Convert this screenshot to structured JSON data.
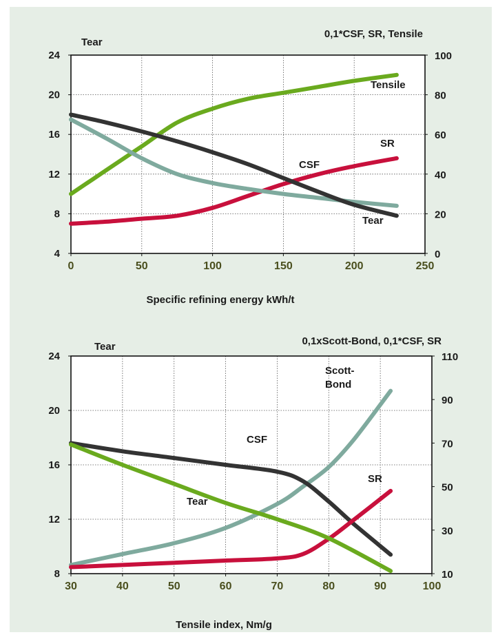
{
  "chart_data": [
    {
      "type": "line",
      "title": "",
      "xlabel": "Specific refining energy kWh/t",
      "ylabel_left": "Tear",
      "ylabel_right": "0,1*CSF, SR, Tensile",
      "xlim": [
        0,
        250
      ],
      "ylim_left": [
        4,
        24
      ],
      "ylim_right": [
        0,
        100
      ],
      "x_ticks": [
        0,
        50,
        100,
        150,
        200,
        250
      ],
      "y_ticks_left": [
        4,
        8,
        12,
        16,
        20,
        24
      ],
      "y_ticks_right": [
        0,
        20,
        40,
        60,
        80,
        100
      ],
      "grid": true,
      "series": [
        {
          "name": "Tensile",
          "axis": "right",
          "color": "#6aaa1e",
          "x": [
            0,
            25,
            50,
            75,
            100,
            125,
            150,
            175,
            200,
            230
          ],
          "y": [
            30,
            42,
            54,
            66,
            73,
            78,
            81,
            84,
            87,
            90
          ]
        },
        {
          "name": "SR",
          "axis": "right",
          "color": "#c8103c",
          "x": [
            0,
            25,
            50,
            75,
            100,
            125,
            150,
            175,
            200,
            230
          ],
          "y": [
            15,
            16,
            17.5,
            19,
            23,
            29,
            35,
            40,
            44,
            48
          ]
        },
        {
          "name": "CSF",
          "axis": "left",
          "color": "#7faa9e",
          "x": [
            0,
            25,
            50,
            75,
            100,
            125,
            150,
            175,
            200,
            230
          ],
          "y": [
            17.5,
            15.6,
            13.6,
            12.0,
            11.1,
            10.5,
            10.0,
            9.6,
            9.2,
            8.8
          ]
        },
        {
          "name": "Tear",
          "axis": "left",
          "color": "#333333",
          "x": [
            0,
            25,
            50,
            75,
            100,
            125,
            150,
            175,
            200,
            230
          ],
          "y": [
            18.0,
            17.2,
            16.3,
            15.3,
            14.2,
            13.0,
            11.6,
            10.2,
            8.9,
            7.8
          ]
        }
      ],
      "annotations": [
        "Tensile",
        "SR",
        "CSF",
        "Tear"
      ]
    },
    {
      "type": "line",
      "title": "",
      "xlabel": "Tensile index, Nm/g",
      "ylabel_left": "Tear",
      "ylabel_right": "0,1xScott-Bond, 0,1*CSF, SR",
      "xlim": [
        30,
        100
      ],
      "ylim_left": [
        8,
        24
      ],
      "ylim_right": [
        10,
        110
      ],
      "x_ticks": [
        30,
        40,
        50,
        60,
        70,
        80,
        90,
        100
      ],
      "y_ticks_left": [
        8,
        12,
        16,
        20,
        24
      ],
      "y_ticks_right": [
        10,
        30,
        50,
        70,
        90,
        110
      ],
      "grid": true,
      "series": [
        {
          "name": "Scott-Bond",
          "axis": "right",
          "color": "#7faa9e",
          "x": [
            30,
            40,
            50,
            60,
            70,
            75,
            80,
            85,
            92
          ],
          "y": [
            14,
            19,
            24,
            31,
            42,
            50,
            59,
            72,
            94
          ]
        },
        {
          "name": "CSF",
          "axis": "left",
          "color": "#333333",
          "x": [
            30,
            40,
            50,
            60,
            70,
            75,
            80,
            85,
            92
          ],
          "y": [
            17.6,
            17.0,
            16.5,
            16.0,
            15.5,
            14.8,
            13.3,
            11.6,
            9.4
          ]
        },
        {
          "name": "SR",
          "axis": "right",
          "color": "#c8103c",
          "x": [
            30,
            40,
            50,
            60,
            70,
            75,
            80,
            85,
            92
          ],
          "y": [
            13,
            14,
            15,
            16,
            17,
            19,
            26,
            35,
            48
          ]
        },
        {
          "name": "Tear",
          "axis": "left",
          "color": "#6aaa1e",
          "x": [
            30,
            40,
            50,
            60,
            70,
            80,
            92
          ],
          "y": [
            17.5,
            16.0,
            14.6,
            13.2,
            12.0,
            10.6,
            8.2
          ]
        }
      ],
      "annotations": [
        "Scott-\nBond",
        "CSF",
        "SR",
        "Tear"
      ]
    }
  ]
}
